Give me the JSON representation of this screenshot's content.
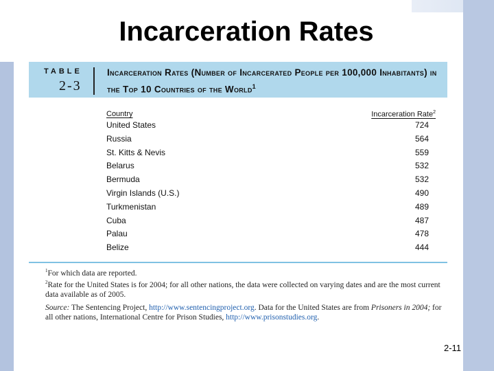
{
  "slide": {
    "title": "Incarceration Rates",
    "page_number": "2-11"
  },
  "table": {
    "tag": "TABLE",
    "number": "2-3",
    "caption": "Incarceration Rates (Number of Incarcerated People per 100,000 Inhabitants) in the Top 10 Countries of the World",
    "caption_note": "1",
    "columns": {
      "country": "Country",
      "rate": "Incarceration Rate",
      "rate_note": "2"
    },
    "rows": [
      {
        "country": "United States",
        "rate": "724"
      },
      {
        "country": "Russia",
        "rate": "564"
      },
      {
        "country": "St. Kitts & Nevis",
        "rate": "559"
      },
      {
        "country": "Belarus",
        "rate": "532"
      },
      {
        "country": "Bermuda",
        "rate": "532"
      },
      {
        "country": "Virgin Islands (U.S.)",
        "rate": "490"
      },
      {
        "country": "Turkmenistan",
        "rate": "489"
      },
      {
        "country": "Cuba",
        "rate": "487"
      },
      {
        "country": "Palau",
        "rate": "478"
      },
      {
        "country": "Belize",
        "rate": "444"
      }
    ],
    "notes": {
      "note1_mark": "1",
      "note1": "For which data are reported.",
      "note2_mark": "2",
      "note2": "Rate for the United States is for 2004; for all other nations, the data were collected on varying dates and are the most current data available as of 2005.",
      "source_label": "Source:",
      "source_text1": "The Sentencing Project,",
      "source_link1": "http://www.sentencingproject.org",
      "source_text2": ". Data for the United States are from",
      "source_title": "Prisoners in 2004;",
      "source_text3": "for all other nations, International Centre for Prison Studies,",
      "source_link2": "http://www.prisonstudies.org",
      "source_end": "."
    }
  },
  "colors": {
    "header_band": "#b0d8ec",
    "rule": "#7fc1e3",
    "left_bar": "#b3c3df",
    "right_strip": "#b9c8e2"
  }
}
